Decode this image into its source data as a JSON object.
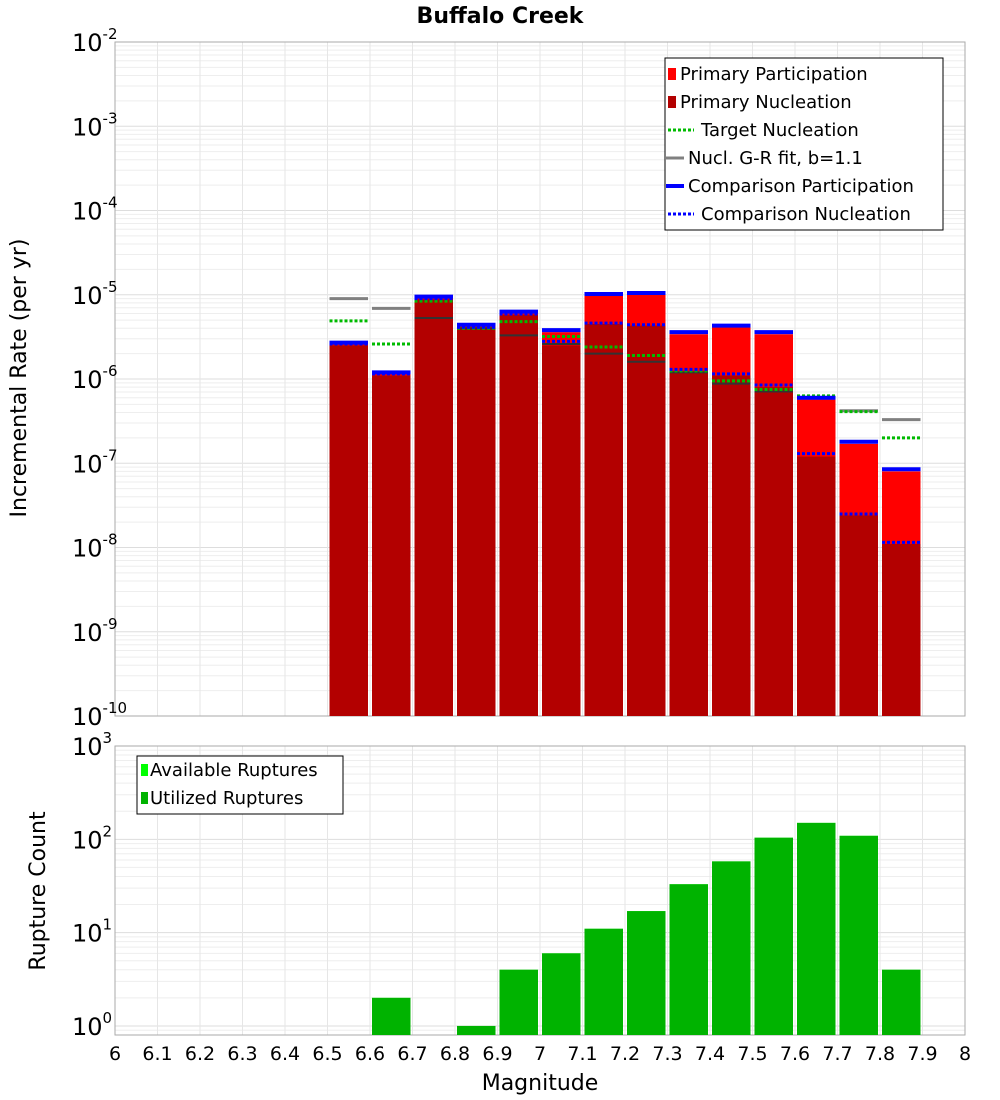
{
  "chart_data": [
    {
      "type": "bar",
      "title": "Buffalo Creek",
      "xlabel": "",
      "ylabel": "Incremental Rate (per yr)",
      "xlim": [
        6,
        8
      ],
      "ylim": [
        1e-10,
        0.01
      ],
      "y_scale": "log",
      "grid": true,
      "legend_position": "top-right",
      "bin_width": 0.1,
      "x": [
        6.55,
        6.65,
        6.75,
        6.85,
        6.95,
        7.05,
        7.15,
        7.25,
        7.35,
        7.45,
        7.55,
        7.65,
        7.75,
        7.85
      ],
      "series": [
        {
          "name": "Primary Participation",
          "style": "bar",
          "color": "#ff0000",
          "values": [
            2.6e-06,
            1.15e-06,
            9.2e-06,
            4.2e-06,
            6e-06,
            3.6e-06,
            9.8e-06,
            1e-05,
            3.4e-06,
            4.1e-06,
            3.4e-06,
            5.7e-07,
            1.7e-07,
            8e-08
          ]
        },
        {
          "name": "Primary Nucleation",
          "style": "bar",
          "color": "#b30000",
          "values": [
            2.5e-06,
            1.1e-06,
            8.8e-06,
            4e-06,
            5.8e-06,
            2.5e-06,
            4.5e-06,
            4.3e-06,
            1.2e-06,
            1.1e-06,
            8e-07,
            1.2e-07,
            2.4e-08,
            1.1e-08
          ]
        },
        {
          "name": "Target Nucleation",
          "style": "dotted-line",
          "color": "#00bb00",
          "values": [
            4.9e-06,
            2.6e-06,
            8.4e-06,
            4e-06,
            4.8e-06,
            3.2e-06,
            2.4e-06,
            1.9e-06,
            1.25e-06,
            9.5e-07,
            7.5e-07,
            6.3e-07,
            4.1e-07,
            2e-07
          ]
        },
        {
          "name": "Nucl. G-R fit, b=1.1",
          "style": "line",
          "color": "#808080",
          "values": [
            9e-06,
            6.9e-06,
            null,
            null,
            null,
            null,
            null,
            null,
            null,
            null,
            null,
            null,
            4.2e-07,
            3.3e-07
          ]
        },
        {
          "name": "Comparison Participation",
          "style": "line",
          "color": "#0000ff",
          "values": [
            2.7e-06,
            1.2e-06,
            9.5e-06,
            4.4e-06,
            6.3e-06,
            3.8e-06,
            1.02e-05,
            1.05e-05,
            3.6e-06,
            4.3e-06,
            3.6e-06,
            6e-07,
            1.8e-07,
            8.5e-08
          ]
        },
        {
          "name": "Comparison Nucleation",
          "style": "dotted-line",
          "color": "#0000ff",
          "values": [
            2.6e-06,
            1.15e-06,
            9e-06,
            4.1e-06,
            5.9e-06,
            2.8e-06,
            4.6e-06,
            4.4e-06,
            1.3e-06,
            1.15e-06,
            8.5e-07,
            1.3e-07,
            2.5e-08,
            1.15e-08
          ]
        }
      ],
      "extra_lines_color": "#333333",
      "extra_lines": [
        null,
        null,
        5.3e-06,
        4e-06,
        3.3e-06,
        2.6e-06,
        2e-06,
        1.6e-06,
        1.2e-06,
        8.8e-07,
        7.1e-07,
        6e-07,
        4.2e-07,
        null
      ]
    },
    {
      "type": "bar",
      "title": "",
      "xlabel": "Magnitude",
      "ylabel": "Rupture Count",
      "xlim": [
        6,
        8
      ],
      "ylim": [
        0.8,
        1000
      ],
      "y_scale": "log",
      "grid": true,
      "legend_position": "top-left",
      "bin_width": 0.1,
      "x": [
        6.65,
        6.85,
        6.95,
        7.05,
        7.15,
        7.25,
        7.35,
        7.45,
        7.55,
        7.65,
        7.75,
        7.85
      ],
      "series": [
        {
          "name": "Available Ruptures",
          "color": "#00ff00",
          "values": [
            2,
            1,
            4,
            6,
            11,
            17,
            33,
            58,
            104,
            150,
            109,
            4
          ]
        },
        {
          "name": "Utilized Ruptures",
          "color": "#00b300",
          "values": [
            2,
            1,
            4,
            6,
            11,
            17,
            33,
            58,
            104,
            150,
            109,
            4
          ]
        }
      ],
      "x_ticks": [
        "6",
        "6.1",
        "6.2",
        "6.3",
        "6.4",
        "6.5",
        "6.6",
        "6.7",
        "6.8",
        "6.9",
        "7",
        "7.1",
        "7.2",
        "7.3",
        "7.4",
        "7.5",
        "7.6",
        "7.7",
        "7.8",
        "7.9",
        "8"
      ]
    }
  ]
}
